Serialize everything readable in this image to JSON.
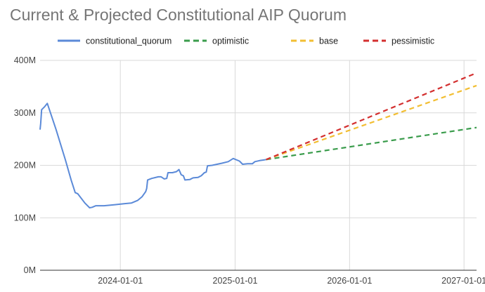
{
  "chart_data": {
    "type": "line",
    "title": "Current & Projected Constitutional AIP Quorum",
    "xlabel": "",
    "ylabel": "",
    "x_range": [
      "2023-04-20",
      "2027-02-10"
    ],
    "ylim": [
      0,
      400000000
    ],
    "y_ticks": [
      {
        "value": 0,
        "label": "0M"
      },
      {
        "value": 100000000,
        "label": "100M"
      },
      {
        "value": 200000000,
        "label": "200M"
      },
      {
        "value": 300000000,
        "label": "300M"
      },
      {
        "value": 400000000,
        "label": "400M"
      }
    ],
    "x_ticks": [
      {
        "value": "2024-01-01",
        "label": "2024-01-01"
      },
      {
        "value": "2025-01-01",
        "label": "2025-01-01"
      },
      {
        "value": "2026-01-01",
        "label": "2026-01-01"
      },
      {
        "value": "2027-01-01",
        "label": "2027-01-01"
      }
    ],
    "grid": true,
    "legend_position": "top",
    "series": [
      {
        "name": "constitutional_quorum",
        "color": "#5b8ad8",
        "dash": "solid",
        "points": [
          [
            "2023-04-20",
            268000000
          ],
          [
            "2023-04-22",
            280000000
          ],
          [
            "2023-04-25",
            306000000
          ],
          [
            "2023-05-05",
            312000000
          ],
          [
            "2023-05-13",
            318000000
          ],
          [
            "2023-06-10",
            268000000
          ],
          [
            "2023-07-10",
            210000000
          ],
          [
            "2023-07-28",
            172000000
          ],
          [
            "2023-08-10",
            148000000
          ],
          [
            "2023-08-18",
            146000000
          ],
          [
            "2023-09-10",
            128000000
          ],
          [
            "2023-09-25",
            119000000
          ],
          [
            "2023-10-03",
            120000000
          ],
          [
            "2023-10-15",
            123000000
          ],
          [
            "2023-11-10",
            123000000
          ],
          [
            "2023-12-15",
            125000000
          ],
          [
            "2024-01-15",
            127000000
          ],
          [
            "2024-02-05",
            128000000
          ],
          [
            "2024-02-25",
            133000000
          ],
          [
            "2024-03-10",
            140000000
          ],
          [
            "2024-03-22",
            150000000
          ],
          [
            "2024-03-25",
            156000000
          ],
          [
            "2024-03-28",
            172000000
          ],
          [
            "2024-04-10",
            175000000
          ],
          [
            "2024-05-01",
            178000000
          ],
          [
            "2024-05-10",
            178000000
          ],
          [
            "2024-05-20",
            174000000
          ],
          [
            "2024-05-28",
            175000000
          ],
          [
            "2024-06-01",
            186000000
          ],
          [
            "2024-06-15",
            186000000
          ],
          [
            "2024-06-28",
            188000000
          ],
          [
            "2024-07-06",
            192000000
          ],
          [
            "2024-07-13",
            182000000
          ],
          [
            "2024-07-20",
            180000000
          ],
          [
            "2024-07-25",
            172000000
          ],
          [
            "2024-08-10",
            173000000
          ],
          [
            "2024-08-20",
            176000000
          ],
          [
            "2024-09-05",
            177000000
          ],
          [
            "2024-09-15",
            180000000
          ],
          [
            "2024-09-25",
            186000000
          ],
          [
            "2024-10-01",
            187000000
          ],
          [
            "2024-10-05",
            199000000
          ],
          [
            "2024-10-20",
            200000000
          ],
          [
            "2024-11-20",
            204000000
          ],
          [
            "2024-12-10",
            207000000
          ],
          [
            "2024-12-26",
            213000000
          ],
          [
            "2025-01-15",
            208000000
          ],
          [
            "2025-01-25",
            202000000
          ],
          [
            "2025-02-10",
            203000000
          ],
          [
            "2025-02-25",
            203000000
          ],
          [
            "2025-03-05",
            207000000
          ],
          [
            "2025-03-20",
            209000000
          ],
          [
            "2025-04-01",
            210000000
          ],
          [
            "2025-04-10",
            211000000
          ]
        ]
      },
      {
        "name": "optimistic",
        "color": "#3a9c4c",
        "dash": "dashed",
        "points": [
          [
            "2025-04-10",
            211000000
          ],
          [
            "2027-02-10",
            272000000
          ]
        ]
      },
      {
        "name": "base",
        "color": "#f2be32",
        "dash": "dashed",
        "points": [
          [
            "2025-04-10",
            211000000
          ],
          [
            "2027-02-10",
            352000000
          ]
        ]
      },
      {
        "name": "pessimistic",
        "color": "#d32f2f",
        "dash": "dashed",
        "points": [
          [
            "2025-04-10",
            211000000
          ],
          [
            "2027-02-10",
            376000000
          ]
        ]
      }
    ]
  }
}
